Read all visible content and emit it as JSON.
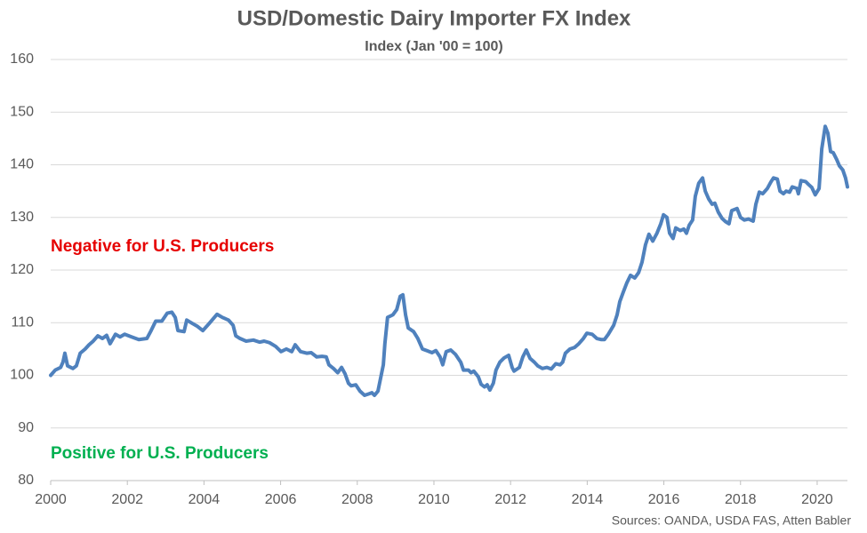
{
  "chart_data": {
    "type": "line",
    "title": "USD/Domestic Dairy Importer FX Index",
    "subtitle": "Index (Jan '00 = 100)",
    "annotations": [
      "Negative for U.S. Producers",
      "Positive for U.S. Producers"
    ],
    "source": "Sources: OANDA, USDA FAS, Atten Babler",
    "color": "#4f81bd",
    "grid": true,
    "xlim": [
      2000,
      2020.79
    ],
    "xticks": [
      2000,
      2002,
      2004,
      2006,
      2008,
      2010,
      2012,
      2014,
      2016,
      2018,
      2020
    ],
    "ylim": [
      80,
      160
    ],
    "yticks": [
      80,
      90,
      100,
      110,
      120,
      130,
      140,
      150,
      160
    ],
    "x": [
      2000.0,
      2000.12,
      2000.26,
      2000.32,
      2000.37,
      2000.44,
      2000.58,
      2000.67,
      2000.77,
      2000.9,
      2001.0,
      2001.11,
      2001.23,
      2001.35,
      2001.46,
      2001.55,
      2001.69,
      2001.81,
      2001.93,
      2002.11,
      2002.3,
      2002.51,
      2002.62,
      2002.74,
      2002.9,
      2003.04,
      2003.16,
      2003.25,
      2003.32,
      2003.48,
      2003.55,
      2003.71,
      2003.83,
      2003.97,
      2004.13,
      2004.34,
      2004.48,
      2004.64,
      2004.76,
      2004.83,
      2004.94,
      2005.1,
      2005.29,
      2005.45,
      2005.57,
      2005.71,
      2005.87,
      2006.01,
      2006.15,
      2006.29,
      2006.38,
      2006.52,
      2006.68,
      2006.8,
      2006.94,
      2007.08,
      2007.19,
      2007.26,
      2007.38,
      2007.49,
      2007.59,
      2007.68,
      2007.77,
      2007.84,
      2007.96,
      2008.07,
      2008.19,
      2008.31,
      2008.38,
      2008.45,
      2008.54,
      2008.61,
      2008.68,
      2008.72,
      2008.79,
      2008.93,
      2009.03,
      2009.12,
      2009.19,
      2009.26,
      2009.33,
      2009.47,
      2009.58,
      2009.7,
      2009.81,
      2009.95,
      2010.05,
      2010.16,
      2010.23,
      2010.32,
      2010.44,
      2010.56,
      2010.7,
      2010.77,
      2010.9,
      2010.97,
      2011.04,
      2011.16,
      2011.23,
      2011.32,
      2011.39,
      2011.46,
      2011.55,
      2011.62,
      2011.72,
      2011.83,
      2011.95,
      2012.04,
      2012.09,
      2012.23,
      2012.32,
      2012.41,
      2012.51,
      2012.62,
      2012.71,
      2012.83,
      2012.95,
      2013.06,
      2013.18,
      2013.29,
      2013.36,
      2013.43,
      2013.55,
      2013.67,
      2013.78,
      2013.9,
      2013.99,
      2014.13,
      2014.25,
      2014.36,
      2014.45,
      2014.55,
      2014.69,
      2014.78,
      2014.85,
      2014.94,
      2015.03,
      2015.13,
      2015.24,
      2015.34,
      2015.43,
      2015.52,
      2015.61,
      2015.71,
      2015.82,
      2015.92,
      2015.99,
      2016.08,
      2016.15,
      2016.24,
      2016.31,
      2016.43,
      2016.52,
      2016.59,
      2016.66,
      2016.75,
      2016.82,
      2016.91,
      2017.01,
      2017.08,
      2017.17,
      2017.26,
      2017.33,
      2017.42,
      2017.52,
      2017.61,
      2017.7,
      2017.77,
      2017.91,
      2018.0,
      2018.1,
      2018.21,
      2018.33,
      2018.4,
      2018.49,
      2018.58,
      2018.7,
      2018.79,
      2018.86,
      2018.96,
      2019.03,
      2019.12,
      2019.19,
      2019.28,
      2019.35,
      2019.47,
      2019.51,
      2019.58,
      2019.7,
      2019.77,
      2019.86,
      2019.95,
      2020.05,
      2020.12,
      2020.21,
      2020.28,
      2020.35,
      2020.42,
      2020.51,
      2020.58,
      2020.67,
      2020.74,
      2020.79
    ],
    "values": [
      100,
      101,
      101.5,
      102.5,
      104.2,
      101.8,
      101.3,
      101.8,
      104.2,
      105,
      105.8,
      106.5,
      107.5,
      107,
      107.6,
      106,
      107.8,
      107.3,
      107.8,
      107.3,
      106.8,
      107,
      108.5,
      110.3,
      110.3,
      111.8,
      112,
      111,
      108.5,
      108.3,
      110.5,
      109.8,
      109.3,
      108.5,
      109.8,
      111.6,
      111,
      110.5,
      109.5,
      107.5,
      107,
      106.5,
      106.7,
      106.3,
      106.5,
      106.2,
      105.5,
      104.5,
      105,
      104.5,
      105.8,
      104.5,
      104.2,
      104.3,
      103.5,
      103.6,
      103.5,
      102,
      101.3,
      100.5,
      101.5,
      100.3,
      98.5,
      98,
      98.2,
      97,
      96.2,
      96.5,
      96.7,
      96.2,
      97,
      99.5,
      102,
      106,
      111,
      111.5,
      112.5,
      115,
      115.3,
      111.5,
      109,
      108.3,
      107,
      105,
      104.7,
      104.3,
      104.7,
      103.5,
      102,
      104.5,
      104.8,
      104,
      102.5,
      101,
      101,
      100.5,
      100.8,
      99.7,
      98.3,
      97.8,
      98.2,
      97.2,
      98.5,
      101,
      102.5,
      103.3,
      103.8,
      101.5,
      100.8,
      101.5,
      103.5,
      104.8,
      103.2,
      102.5,
      101.8,
      101.3,
      101.5,
      101.2,
      102.2,
      102,
      102.5,
      104.2,
      105,
      105.3,
      106,
      107,
      108,
      107.8,
      107,
      106.8,
      106.8,
      107.8,
      109.5,
      111.5,
      114,
      115.8,
      117.5,
      119,
      118.5,
      119.5,
      121.5,
      124.8,
      126.8,
      125.5,
      127,
      128.8,
      130.5,
      130,
      127,
      126,
      128,
      127.5,
      127.8,
      127,
      128.5,
      129.5,
      134,
      136.5,
      137.5,
      135,
      133.5,
      132.5,
      132.7,
      131,
      129.8,
      129.2,
      128.8,
      131.3,
      131.7,
      130,
      129.5,
      129.7,
      129.3,
      132.5,
      134.8,
      134.5,
      135.5,
      136.7,
      137.5,
      137.3,
      135,
      134.5,
      135,
      134.8,
      135.8,
      135.5,
      134.5,
      137,
      136.8,
      136.3,
      135.7,
      134.3,
      135.5,
      143,
      147.3,
      146,
      142.5,
      142.3,
      141,
      139.8,
      139,
      137.5,
      135.8
    ]
  }
}
